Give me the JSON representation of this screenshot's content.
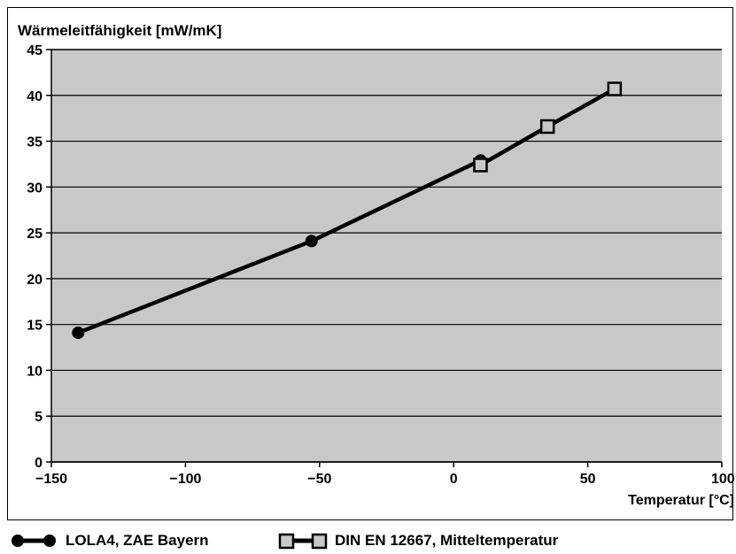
{
  "chart_data": {
    "type": "line",
    "title": "Wärmeleitfähigkeit [mW/mK]",
    "xlabel": "Temperatur [°C]",
    "ylabel": "",
    "xlim": [
      -150,
      100
    ],
    "ylim": [
      0,
      45
    ],
    "xticks": [
      -150,
      -100,
      -50,
      0,
      50,
      100
    ],
    "yticks": [
      0,
      5,
      10,
      15,
      20,
      25,
      30,
      35,
      40,
      45
    ],
    "xtick_labels": [
      "−150",
      "−100",
      "−50",
      "0",
      "50",
      "100"
    ],
    "ytick_labels": [
      "0",
      "5",
      "10",
      "15",
      "20",
      "25",
      "30",
      "35",
      "40",
      "45"
    ],
    "grid": "horizontal",
    "legend_position": "bottom",
    "series": [
      {
        "name": "LOLA4, ZAE Bayern",
        "marker": "circle",
        "x": [
          -140,
          -53,
          10
        ],
        "y": [
          14.1,
          24.1,
          32.9
        ]
      },
      {
        "name": "DIN EN 12667, Mitteltemperatur",
        "marker": "square",
        "x": [
          10,
          35,
          60
        ],
        "y": [
          32.4,
          36.6,
          40.7
        ]
      }
    ],
    "colors": {
      "plot_background": "#c8c8c8",
      "line": "#000000",
      "square_fill": "#c8c8c8",
      "circle_fill": "#000000"
    }
  }
}
